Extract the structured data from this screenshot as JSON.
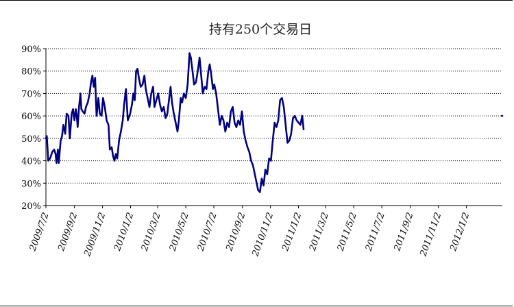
{
  "chart_data": {
    "type": "line",
    "title": "持有250个交易日",
    "xlabel": "",
    "ylabel": "",
    "ylim": [
      0.2,
      0.9
    ],
    "y_ticks": [
      "90%",
      "80%",
      "70%",
      "60%",
      "50%",
      "40%",
      "30%",
      "20%"
    ],
    "y_tick_values": [
      0.9,
      0.8,
      0.7,
      0.6,
      0.5,
      0.4,
      0.3,
      0.2
    ],
    "x_ticks": [
      "2009/7/2",
      "2009/9/2",
      "2009/11/2",
      "2010/1/2",
      "2010/3/2",
      "2010/5/2",
      "2010/7/2",
      "2010/9/2",
      "2010/11/2",
      "2011/1/2",
      "2011/3/2",
      "2011/5/2",
      "2011/7/2",
      "2011/9/2",
      "2011/11/2",
      "2012/1/2"
    ],
    "xlim": [
      "2009/7/2",
      "2012/3/20"
    ],
    "grid": "horizontal dotted",
    "legend": "none",
    "series_color": "#000080",
    "series": [
      {
        "values": [
          [
            "2009/7/2",
            0.5
          ],
          [
            "2009/7/4",
            0.51
          ],
          [
            "2009/7/7",
            0.4
          ],
          [
            "2009/7/11",
            0.41
          ],
          [
            "2009/7/16",
            0.44
          ],
          [
            "2009/7/20",
            0.45
          ],
          [
            "2009/7/23",
            0.43
          ],
          [
            "2009/7/25",
            0.39
          ],
          [
            "2009/7/28",
            0.45
          ],
          [
            "2009/7/30",
            0.39
          ],
          [
            "2009/8/3",
            0.49
          ],
          [
            "2009/8/6",
            0.51
          ],
          [
            "2009/8/9",
            0.56
          ],
          [
            "2009/8/13",
            0.52
          ],
          [
            "2009/8/16",
            0.61
          ],
          [
            "2009/8/20",
            0.6
          ],
          [
            "2009/8/23",
            0.5
          ],
          [
            "2009/8/27",
            0.61
          ],
          [
            "2009/8/30",
            0.63
          ],
          [
            "2009/9/2",
            0.58
          ],
          [
            "2009/9/5",
            0.63
          ],
          [
            "2009/9/7",
            0.6
          ],
          [
            "2009/9/9",
            0.55
          ],
          [
            "2009/9/12",
            0.64
          ],
          [
            "2009/9/15",
            0.7
          ],
          [
            "2009/9/17",
            0.63
          ],
          [
            "2009/9/20",
            0.62
          ],
          [
            "2009/9/24",
            0.61
          ],
          [
            "2009/9/27",
            0.64
          ],
          [
            "2009/10/1",
            0.66
          ],
          [
            "2009/10/5",
            0.7
          ],
          [
            "2009/10/8",
            0.75
          ],
          [
            "2009/10/11",
            0.78
          ],
          [
            "2009/10/14",
            0.73
          ],
          [
            "2009/10/17",
            0.77
          ],
          [
            "2009/10/20",
            0.6
          ],
          [
            "2009/10/24",
            0.68
          ],
          [
            "2009/10/27",
            0.61
          ],
          [
            "2009/10/31",
            0.6
          ],
          [
            "2009/11/3",
            0.68
          ],
          [
            "2009/11/7",
            0.64
          ],
          [
            "2009/11/11",
            0.58
          ],
          [
            "2009/11/15",
            0.56
          ],
          [
            "2009/11/18",
            0.45
          ],
          [
            "2009/11/22",
            0.46
          ],
          [
            "2009/11/25",
            0.42
          ],
          [
            "2009/11/28",
            0.4
          ],
          [
            "2009/12/1",
            0.43
          ],
          [
            "2009/12/4",
            0.41
          ],
          [
            "2009/12/8",
            0.49
          ],
          [
            "2009/12/12",
            0.53
          ],
          [
            "2009/12/16",
            0.58
          ],
          [
            "2009/12/19",
            0.65
          ],
          [
            "2009/12/23",
            0.72
          ],
          [
            "2009/12/27",
            0.58
          ],
          [
            "2010/1/1",
            0.61
          ],
          [
            "2010/1/5",
            0.65
          ],
          [
            "2010/1/8",
            0.7
          ],
          [
            "2010/1/11",
            0.67
          ],
          [
            "2010/1/14",
            0.8
          ],
          [
            "2010/1/17",
            0.81
          ],
          [
            "2010/1/20",
            0.77
          ],
          [
            "2010/1/24",
            0.73
          ],
          [
            "2010/1/28",
            0.74
          ],
          [
            "2010/2/1",
            0.78
          ],
          [
            "2010/2/4",
            0.72
          ],
          [
            "2010/2/8",
            0.68
          ],
          [
            "2010/2/12",
            0.64
          ],
          [
            "2010/2/16",
            0.7
          ],
          [
            "2010/2/20",
            0.73
          ],
          [
            "2010/2/23",
            0.64
          ],
          [
            "2010/2/27",
            0.67
          ],
          [
            "2010/3/3",
            0.7
          ],
          [
            "2010/3/7",
            0.65
          ],
          [
            "2010/3/11",
            0.62
          ],
          [
            "2010/3/15",
            0.64
          ],
          [
            "2010/3/19",
            0.59
          ],
          [
            "2010/3/23",
            0.61
          ],
          [
            "2010/3/27",
            0.68
          ],
          [
            "2010/3/30",
            0.73
          ],
          [
            "2010/4/2",
            0.66
          ],
          [
            "2010/4/6",
            0.61
          ],
          [
            "2010/4/10",
            0.57
          ],
          [
            "2010/4/14",
            0.53
          ],
          [
            "2010/4/17",
            0.58
          ],
          [
            "2010/4/21",
            0.68
          ],
          [
            "2010/4/24",
            0.66
          ],
          [
            "2010/4/28",
            0.7
          ],
          [
            "2010/5/2",
            0.68
          ],
          [
            "2010/5/6",
            0.74
          ],
          [
            "2010/5/10",
            0.88
          ],
          [
            "2010/5/13",
            0.86
          ],
          [
            "2010/5/16",
            0.81
          ],
          [
            "2010/5/20",
            0.74
          ],
          [
            "2010/5/24",
            0.75
          ],
          [
            "2010/5/28",
            0.8
          ],
          [
            "2010/6/1",
            0.86
          ],
          [
            "2010/6/4",
            0.79
          ],
          [
            "2010/6/8",
            0.7
          ],
          [
            "2010/6/12",
            0.73
          ],
          [
            "2010/6/16",
            0.72
          ],
          [
            "2010/6/20",
            0.8
          ],
          [
            "2010/6/23",
            0.83
          ],
          [
            "2010/6/26",
            0.79
          ],
          [
            "2010/6/30",
            0.72
          ],
          [
            "2010/7/3",
            0.74
          ],
          [
            "2010/7/7",
            0.7
          ],
          [
            "2010/7/11",
            0.63
          ],
          [
            "2010/7/15",
            0.56
          ],
          [
            "2010/7/19",
            0.6
          ],
          [
            "2010/7/23",
            0.58
          ],
          [
            "2010/7/27",
            0.53
          ],
          [
            "2010/7/31",
            0.57
          ],
          [
            "2010/8/4",
            0.55
          ],
          [
            "2010/8/8",
            0.62
          ],
          [
            "2010/8/12",
            0.64
          ],
          [
            "2010/8/16",
            0.57
          ],
          [
            "2010/8/20",
            0.55
          ],
          [
            "2010/8/24",
            0.58
          ],
          [
            "2010/8/28",
            0.56
          ],
          [
            "2010/9/1",
            0.62
          ],
          [
            "2010/9/5",
            0.53
          ],
          [
            "2010/9/9",
            0.49
          ],
          [
            "2010/9/13",
            0.46
          ],
          [
            "2010/9/17",
            0.44
          ],
          [
            "2010/9/21",
            0.4
          ],
          [
            "2010/9/25",
            0.38
          ],
          [
            "2010/9/29",
            0.34
          ],
          [
            "2010/10/3",
            0.3
          ],
          [
            "2010/10/6",
            0.27
          ],
          [
            "2010/10/10",
            0.26
          ],
          [
            "2010/10/14",
            0.32
          ],
          [
            "2010/10/18",
            0.29
          ],
          [
            "2010/10/22",
            0.36
          ],
          [
            "2010/10/26",
            0.34
          ],
          [
            "2010/10/30",
            0.41
          ],
          [
            "2010/11/3",
            0.4
          ],
          [
            "2010/11/7",
            0.49
          ],
          [
            "2010/11/11",
            0.57
          ],
          [
            "2010/11/15",
            0.55
          ],
          [
            "2010/11/19",
            0.58
          ],
          [
            "2010/11/23",
            0.67
          ],
          [
            "2010/11/27",
            0.68
          ],
          [
            "2010/12/1",
            0.64
          ],
          [
            "2010/12/5",
            0.56
          ],
          [
            "2010/12/9",
            0.48
          ],
          [
            "2010/12/13",
            0.49
          ],
          [
            "2010/12/17",
            0.52
          ],
          [
            "2010/12/21",
            0.59
          ],
          [
            "2010/12/25",
            0.6
          ],
          [
            "2010/12/29",
            0.58
          ],
          [
            "2011/1/2",
            0.57
          ],
          [
            "2011/1/6",
            0.56
          ],
          [
            "2011/1/10",
            0.6
          ],
          [
            "2011/1/13",
            0.54
          ],
          [
            "2012/3/19",
            0.6
          ],
          [
            "2012/3/20",
            0.6
          ]
        ]
      }
    ]
  }
}
